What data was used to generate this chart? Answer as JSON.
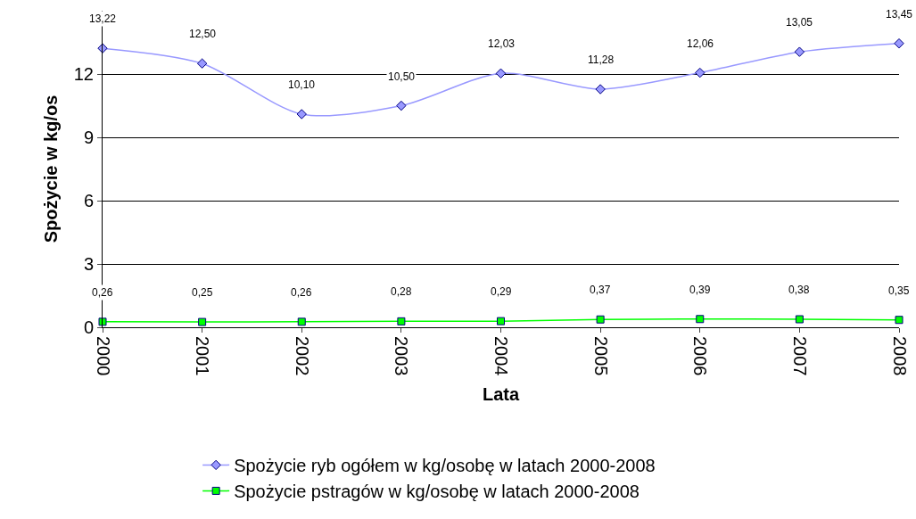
{
  "chart_data": {
    "type": "line",
    "xlabel": "Lata",
    "ylabel": "Spożycie w kg/os",
    "categories": [
      "2000",
      "2001",
      "2002",
      "2003",
      "2004",
      "2005",
      "2006",
      "2007",
      "2008"
    ],
    "series": [
      {
        "name": "Spożycie ryb ogółem w kg/osobę w latach 2000-2008",
        "color": "#9999ff",
        "marker": "diamond",
        "values": [
          13.22,
          12.5,
          10.1,
          10.5,
          12.03,
          11.28,
          12.06,
          13.05,
          13.45
        ],
        "value_labels": [
          "13,22",
          "12,50",
          "10,10",
          "10,50",
          "12,03",
          "11,28",
          "12,06",
          "13,05",
          "13,45"
        ]
      },
      {
        "name": "Spożycie pstragów w kg/osobę w latach 2000-2008",
        "color": "#00ff00",
        "marker": "square",
        "values": [
          0.26,
          0.25,
          0.26,
          0.28,
          0.29,
          0.37,
          0.39,
          0.38,
          0.35
        ],
        "value_labels": [
          "0,26",
          "0,25",
          "0,26",
          "0,28",
          "0,29",
          "0,37",
          "0,39",
          "0,38",
          "0,35"
        ]
      }
    ],
    "ylim": [
      0,
      15
    ],
    "yticks": [
      0,
      3,
      6,
      9,
      12
    ],
    "grid": "y",
    "legend": "bottom"
  }
}
